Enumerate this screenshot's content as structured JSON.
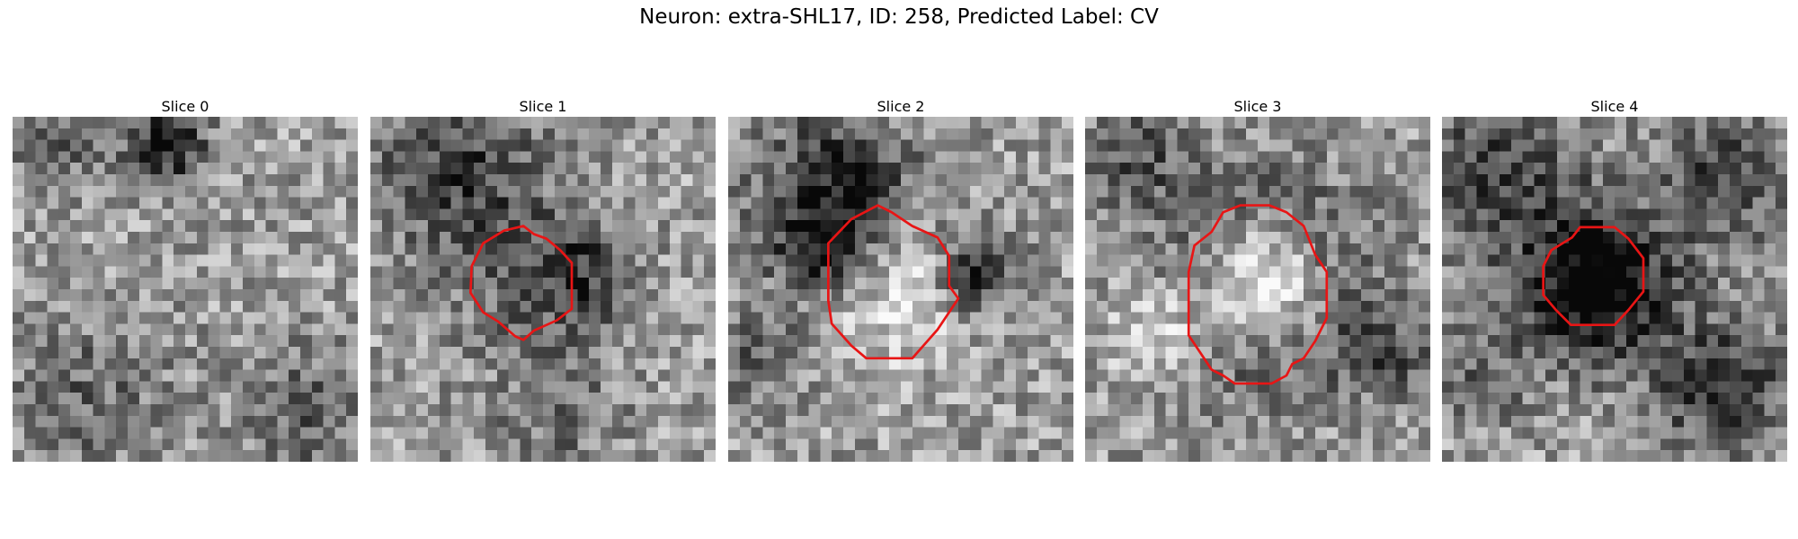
{
  "figure": {
    "title": "Neuron: extra-SHL17, ID: 258, Predicted Label: CV"
  },
  "panels": [
    {
      "title": "Slice 0",
      "has_outline": false
    },
    {
      "title": "Slice 1",
      "has_outline": true
    },
    {
      "title": "Slice 2",
      "has_outline": true
    },
    {
      "title": "Slice 3",
      "has_outline": true
    },
    {
      "title": "Slice 4",
      "has_outline": true
    }
  ],
  "colors": {
    "outline": "#e81515",
    "background": "#ffffff"
  },
  "image": {
    "colormap": "grayscale",
    "grid": "30x30"
  }
}
